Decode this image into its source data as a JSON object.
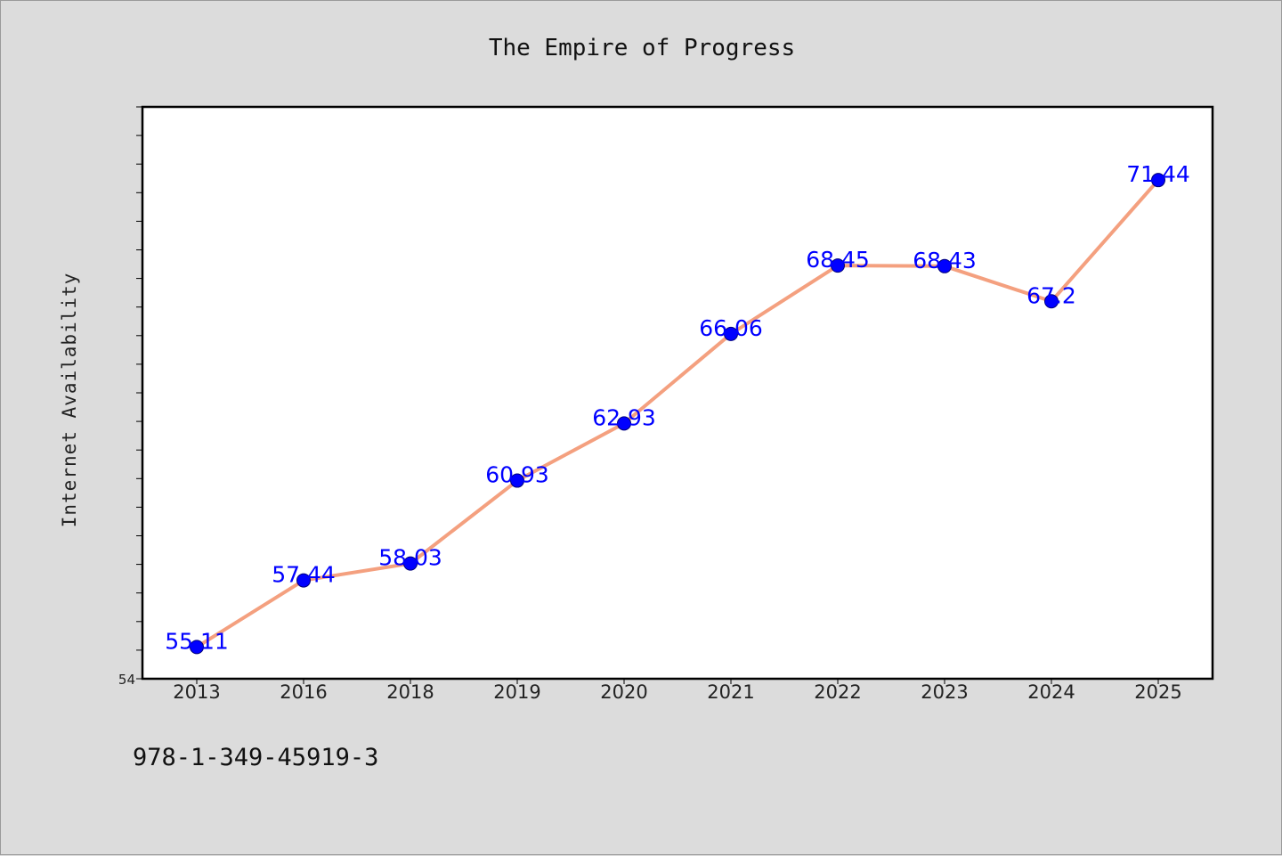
{
  "chart_data": {
    "type": "line",
    "title": "The Empire of Progress",
    "xlabel": "",
    "ylabel": "Internet Availability",
    "categories": [
      "2013",
      "2016",
      "2018",
      "2019",
      "2020",
      "2021",
      "2022",
      "2023",
      "2024",
      "2025"
    ],
    "series": [
      {
        "values": [
          55.11,
          57.44,
          58.03,
          60.93,
          62.93,
          66.06,
          68.45,
          68.43,
          67.2,
          71.44
        ]
      }
    ],
    "data_labels": [
      "55.11",
      "57.44",
      "58.03",
      "60.93",
      "62.93",
      "66.06",
      "68.45",
      "68.43",
      "67.2",
      "71.44"
    ],
    "ylim": [
      54,
      74
    ],
    "y_tick_labels": [
      "54"
    ],
    "grid": false,
    "legend": "none",
    "colors": {
      "line": "#f4a07f",
      "marker": "#0000ff",
      "label": "#0000ff",
      "background": "#dcdcdc",
      "plot_area": "#ffffff"
    }
  },
  "footer_text": "978-1-349-45919-3"
}
